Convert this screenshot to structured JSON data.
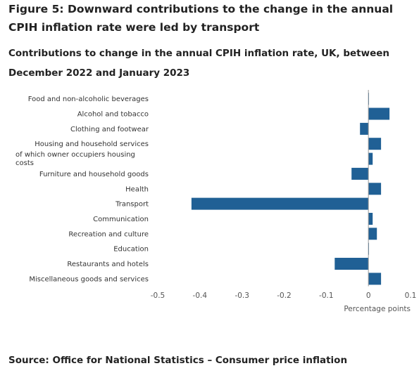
{
  "figure_title": "Figure 5: Downward contributions to the change in the annual CPIH inflation rate were led by transport",
  "source": "Source: Office for National Statistics – Consumer price inflation",
  "chart_data": {
    "type": "bar",
    "orientation": "horizontal",
    "title": "Contributions to change in the annual CPIH inflation rate, UK, between December 2022 and January 2023",
    "xlabel": "Percentage points",
    "ylabel": "",
    "xlim": [
      -0.5,
      0.1
    ],
    "xticks": [
      "-0.5",
      "-0.4",
      "-0.3",
      "-0.2",
      "-0.1",
      "0",
      "0.1"
    ],
    "grid": false,
    "bar_color": "#206095",
    "categories": [
      "Food and non-alcoholic beverages",
      "Alcohol and tobacco",
      "Clothing and footwear",
      "Housing and household services",
      "of which owner occupiers housing costs",
      "Furniture and household goods",
      "Health",
      "Transport",
      "Communication",
      "Recreation and culture",
      "Education",
      "Restaurants and hotels",
      "Miscellaneous goods and services"
    ],
    "values": [
      0.0,
      0.05,
      -0.02,
      0.03,
      0.01,
      -0.04,
      0.03,
      -0.42,
      0.01,
      0.02,
      0.0,
      -0.08,
      0.03
    ]
  }
}
